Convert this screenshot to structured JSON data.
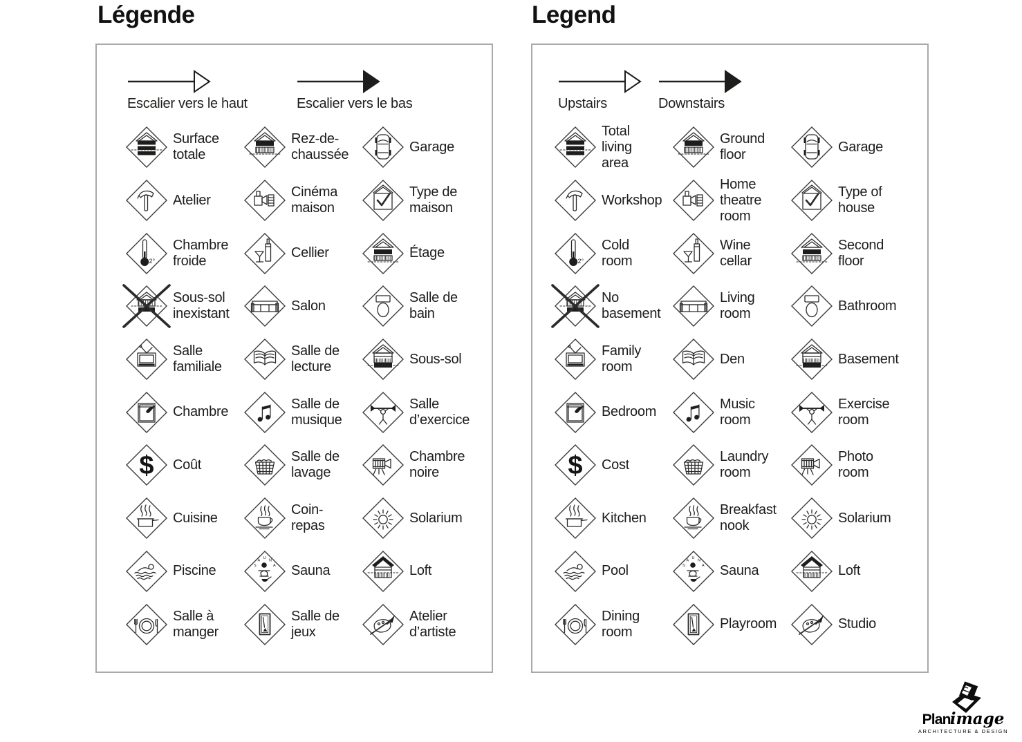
{
  "colors": {
    "ink": "#1d1d1b",
    "panel_border": "#a9a9a9",
    "icon_stroke": "#2b2b2b",
    "background": "#ffffff"
  },
  "panels": [
    {
      "title": "Légende",
      "arrows": [
        {
          "icon": "stairs-up-arrow",
          "head": "outline",
          "label": "Escalier vers le haut"
        },
        {
          "icon": "stairs-down-arrow",
          "head": "filled",
          "label": "Escalier vers le bas"
        }
      ],
      "items": [
        {
          "icon": "total-area-house",
          "lines": [
            "Surface",
            "totale"
          ]
        },
        {
          "icon": "ground-floor-house",
          "lines": [
            "Rez-de-",
            "chaussée"
          ]
        },
        {
          "icon": "garage-car",
          "lines": [
            "Garage"
          ]
        },
        {
          "icon": "hammer",
          "lines": [
            "Atelier"
          ]
        },
        {
          "icon": "projector-film",
          "lines": [
            "Cinéma",
            "maison"
          ]
        },
        {
          "icon": "house-check",
          "lines": [
            "Type de",
            "maison"
          ]
        },
        {
          "icon": "thermometer",
          "lines": [
            "Chambre",
            "froide"
          ]
        },
        {
          "icon": "wine-bottle-glass",
          "lines": [
            "Cellier"
          ]
        },
        {
          "icon": "second-floor-house",
          "lines": [
            "Étage"
          ]
        },
        {
          "icon": "no-basement-house",
          "lines": [
            "Sous-sol",
            "inexistant"
          ]
        },
        {
          "icon": "sofa",
          "lines": [
            "Salon"
          ]
        },
        {
          "icon": "toilet",
          "lines": [
            "Salle de",
            "bain"
          ]
        },
        {
          "icon": "tv",
          "lines": [
            "Salle",
            "familiale"
          ]
        },
        {
          "icon": "open-book",
          "lines": [
            "Salle de",
            "lecture"
          ]
        },
        {
          "icon": "basement-house",
          "lines": [
            "Sous-sol"
          ]
        },
        {
          "icon": "bed",
          "lines": [
            "Chambre"
          ]
        },
        {
          "icon": "music-notes",
          "lines": [
            "Salle de",
            "musique"
          ]
        },
        {
          "icon": "weightlifter",
          "lines": [
            "Salle",
            "d’exercice"
          ]
        },
        {
          "icon": "dollar",
          "lines": [
            "Coût"
          ]
        },
        {
          "icon": "laundry-basket",
          "lines": [
            "Salle de",
            "lavage"
          ]
        },
        {
          "icon": "movie-camera",
          "lines": [
            "Chambre",
            "noire"
          ]
        },
        {
          "icon": "cooking-pot",
          "lines": [
            "Cuisine"
          ]
        },
        {
          "icon": "coffee-cup",
          "lines": [
            "Coin-",
            "repas"
          ]
        },
        {
          "icon": "sun",
          "lines": [
            "Solarium"
          ]
        },
        {
          "icon": "swimmer",
          "lines": [
            "Piscine"
          ]
        },
        {
          "icon": "sauna-person",
          "lines": [
            "Sauna"
          ]
        },
        {
          "icon": "loft-house",
          "lines": [
            "Loft"
          ]
        },
        {
          "icon": "plate-cutlery",
          "lines": [
            "Salle à",
            "manger"
          ]
        },
        {
          "icon": "billiard-table",
          "lines": [
            "Salle de",
            "jeux"
          ]
        },
        {
          "icon": "palette-brush",
          "lines": [
            "Atelier",
            "d’artiste"
          ]
        }
      ]
    },
    {
      "title": "Legend",
      "arrows": [
        {
          "icon": "stairs-up-arrow",
          "head": "outline",
          "label": "Upstairs"
        },
        {
          "icon": "stairs-down-arrow",
          "head": "filled",
          "label": "Downstairs"
        }
      ],
      "items": [
        {
          "icon": "total-area-house",
          "lines": [
            "Total",
            "living",
            "area"
          ]
        },
        {
          "icon": "ground-floor-house",
          "lines": [
            "Ground",
            "floor"
          ]
        },
        {
          "icon": "garage-car",
          "lines": [
            "Garage"
          ]
        },
        {
          "icon": "hammer",
          "lines": [
            "Workshop"
          ]
        },
        {
          "icon": "projector-film",
          "lines": [
            "Home",
            "theatre",
            "room"
          ]
        },
        {
          "icon": "house-check",
          "lines": [
            "Type of",
            "house"
          ]
        },
        {
          "icon": "thermometer",
          "lines": [
            "Cold",
            "room"
          ]
        },
        {
          "icon": "wine-bottle-glass",
          "lines": [
            "Wine",
            "cellar"
          ]
        },
        {
          "icon": "second-floor-house",
          "lines": [
            "Second",
            "floor"
          ]
        },
        {
          "icon": "no-basement-house",
          "lines": [
            "No",
            "basement"
          ]
        },
        {
          "icon": "sofa",
          "lines": [
            "Living",
            "room"
          ]
        },
        {
          "icon": "toilet",
          "lines": [
            "Bathroom"
          ]
        },
        {
          "icon": "tv",
          "lines": [
            "Family",
            "room"
          ]
        },
        {
          "icon": "open-book",
          "lines": [
            "Den"
          ]
        },
        {
          "icon": "basement-house",
          "lines": [
            "Basement"
          ]
        },
        {
          "icon": "bed",
          "lines": [
            "Bedroom"
          ]
        },
        {
          "icon": "music-notes",
          "lines": [
            "Music",
            "room"
          ]
        },
        {
          "icon": "weightlifter",
          "lines": [
            "Exercise",
            "room"
          ]
        },
        {
          "icon": "dollar",
          "lines": [
            "Cost"
          ]
        },
        {
          "icon": "laundry-basket",
          "lines": [
            "Laundry",
            "room"
          ]
        },
        {
          "icon": "movie-camera",
          "lines": [
            "Photo",
            "room"
          ]
        },
        {
          "icon": "cooking-pot",
          "lines": [
            "Kitchen"
          ]
        },
        {
          "icon": "coffee-cup",
          "lines": [
            "Breakfast",
            "nook"
          ]
        },
        {
          "icon": "sun",
          "lines": [
            "Solarium"
          ]
        },
        {
          "icon": "swimmer",
          "lines": [
            "Pool"
          ]
        },
        {
          "icon": "sauna-person",
          "lines": [
            "Sauna"
          ]
        },
        {
          "icon": "loft-house",
          "lines": [
            "Loft"
          ]
        },
        {
          "icon": "plate-cutlery",
          "lines": [
            "Dining",
            "room"
          ]
        },
        {
          "icon": "billiard-table",
          "lines": [
            "Playroom"
          ]
        },
        {
          "icon": "palette-brush",
          "lines": [
            "Studio"
          ]
        }
      ]
    }
  ],
  "icon_texts": {
    "cold_room_temp": "2°",
    "dollar_sign": "$",
    "sauna_letters": "SAUNA"
  },
  "logo": {
    "brand_bold": "Plan",
    "brand_script": "image",
    "tagline": "ARCHITECTURE & DESIGN"
  }
}
